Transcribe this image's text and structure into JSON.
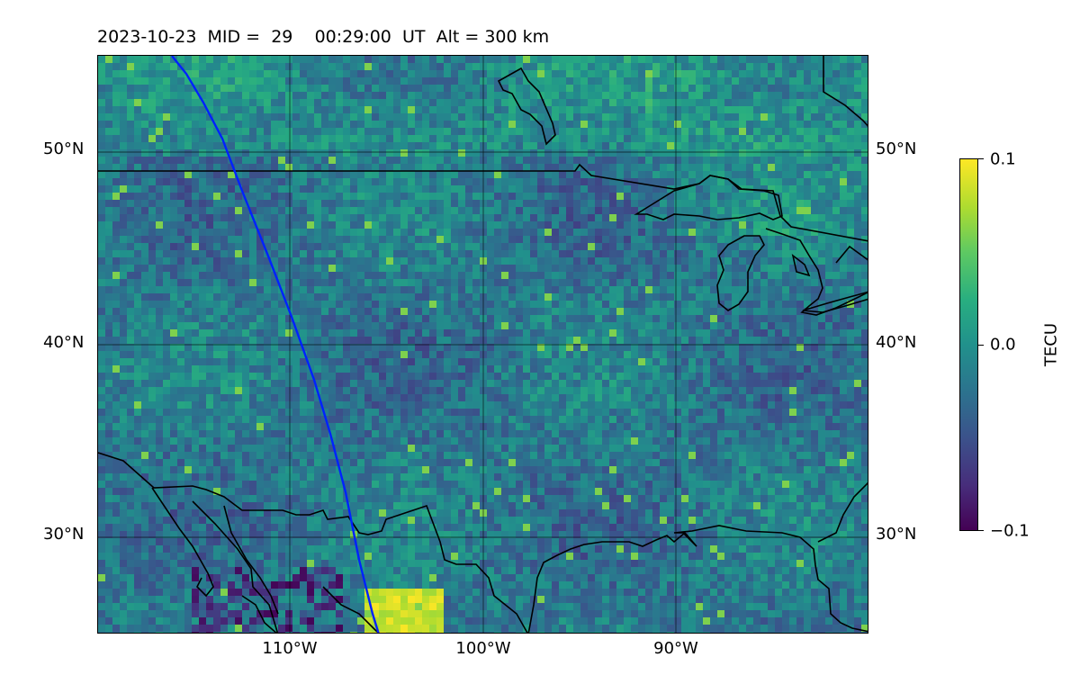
{
  "title": {
    "date": "2023-10-23",
    "mid_label": "MID =",
    "mid_value": "29",
    "time": "00:29:00",
    "time_unit": "UT",
    "alt_label": "Alt =",
    "alt_value": "300 km"
  },
  "map": {
    "region": "central North America",
    "lon_range": [
      -120,
      -80
    ],
    "lat_range": [
      25,
      55
    ],
    "gridlines": true,
    "features": [
      "coastlines",
      "country-borders",
      "great-lakes"
    ],
    "satellite_track_color": "#0022ff",
    "lat_labels": [
      "50°N",
      "40°N",
      "30°N"
    ],
    "lon_labels": [
      "110°W",
      "100°W",
      "90°W"
    ]
  },
  "colorbar": {
    "label": "TECU",
    "colormap": "viridis",
    "ticks": [
      "0.1",
      "0.0",
      "−0.1"
    ],
    "range": [
      -0.1,
      0.1
    ]
  }
}
